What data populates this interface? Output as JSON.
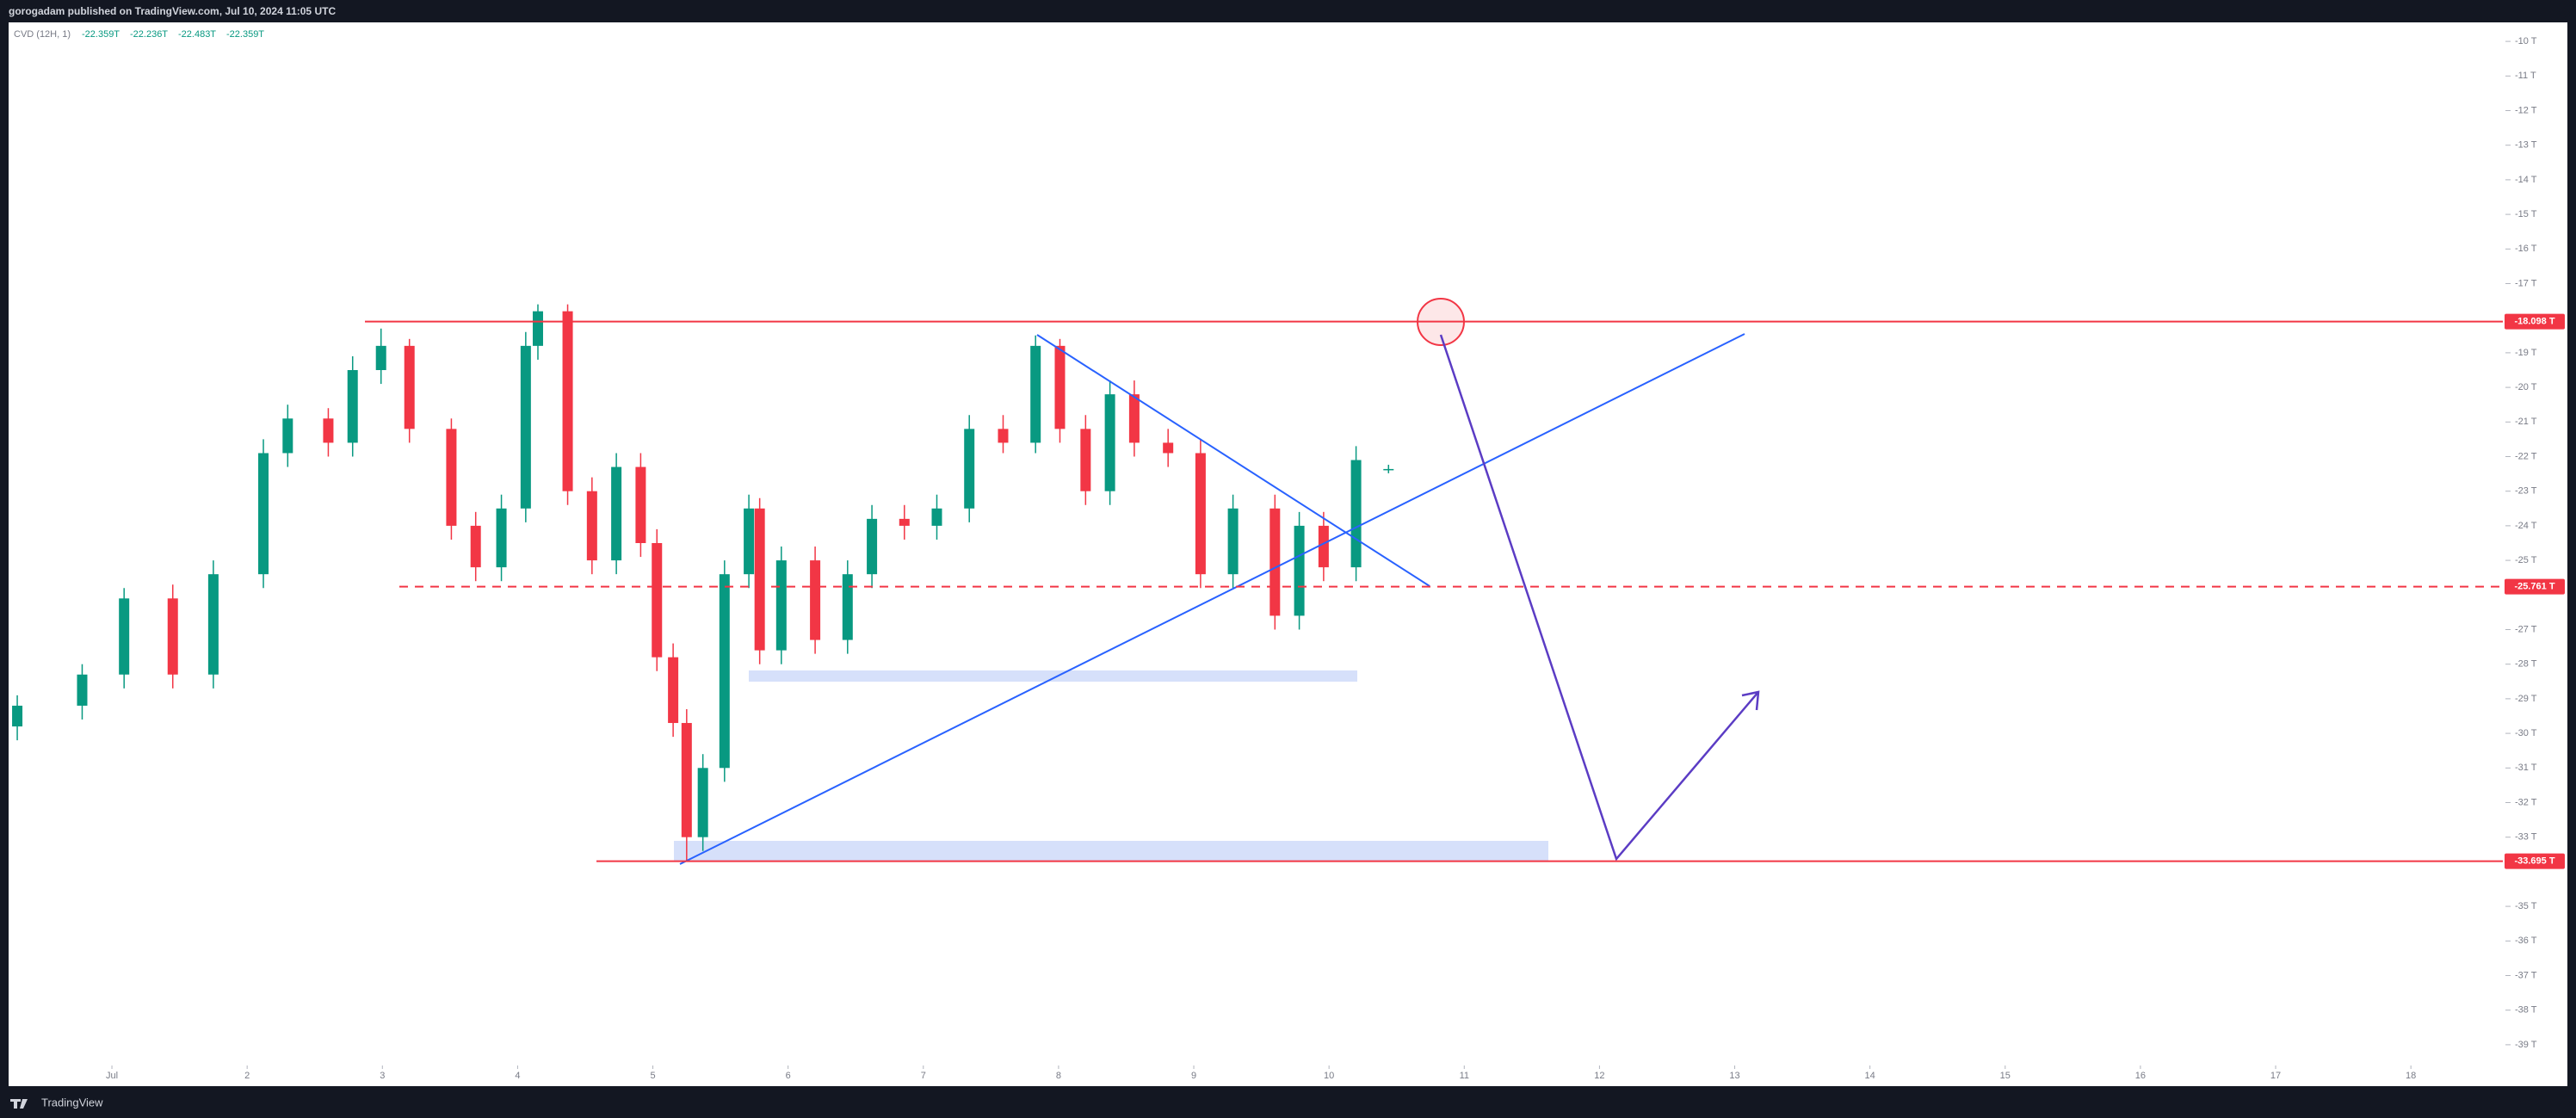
{
  "header": {
    "text": "gorogadam published on TradingView.com, Jul 10, 2024 11:05 UTC"
  },
  "footer": {
    "brand": "TradingView"
  },
  "chart_data": {
    "type": "candlestick",
    "legend_name": "CVD (12H, 1)",
    "legend_values": [
      "-22.359T",
      "-22.236T",
      "-22.483T",
      "-22.359T"
    ],
    "up_color": "#089981",
    "down_color": "#f23645",
    "x": [
      0.3,
      0.78,
      1.09,
      1.45,
      1.75,
      2.12,
      2.3,
      2.6,
      2.78,
      2.99,
      3.2,
      3.51,
      3.69,
      3.88,
      4.06,
      4.15,
      4.37,
      4.55,
      4.73,
      4.91,
      5.03,
      5.15,
      5.25,
      5.37,
      5.53,
      5.71,
      5.79,
      5.95,
      6.2,
      6.44,
      6.62,
      6.86,
      7.1,
      7.34,
      7.59,
      7.83,
      8.01,
      8.2,
      8.38,
      8.56,
      8.81,
      9.05,
      9.29,
      9.6,
      9.78,
      9.96,
      10.2,
      10.44
    ],
    "open": [
      -29.8,
      -29.2,
      -28.3,
      -26.1,
      -28.3,
      -25.4,
      -21.9,
      -20.9,
      -21.6,
      -19.5,
      -18.8,
      -21.2,
      -24,
      -25.2,
      -23.5,
      -18.8,
      -17.8,
      -23,
      -25,
      -22.3,
      -24.5,
      -27.8,
      -29.7,
      -33,
      -31,
      -25.4,
      -23.5,
      -27.6,
      -25,
      -27.3,
      -25.4,
      -23.8,
      -24,
      -23.5,
      -21.2,
      -21.6,
      -18.8,
      -21.2,
      -23,
      -20.2,
      -21.6,
      -21.9,
      -25.4,
      -23.5,
      -26.6,
      -24,
      -25.2,
      -22.359
    ],
    "high": [
      -28.9,
      -28.0,
      -25.8,
      -25.7,
      -25.0,
      -21.5,
      -20.5,
      -20.6,
      -19.1,
      -18.3,
      -18.6,
      -20.9,
      -23.6,
      -23.1,
      -18.4,
      -17.6,
      -17.6,
      -22.6,
      -21.9,
      -21.9,
      -24.1,
      -27.4,
      -29.3,
      -30.6,
      -25.0,
      -23.1,
      -23.2,
      -24.6,
      -24.6,
      -25.0,
      -23.4,
      -23.4,
      -23.1,
      -20.8,
      -20.8,
      -18.5,
      -18.6,
      -20.8,
      -19.8,
      -19.8,
      -21.2,
      -21.5,
      -23.1,
      -23.1,
      -23.6,
      -23.6,
      -21.7,
      -22.236
    ],
    "low": [
      -30.2,
      -29.6,
      -28.7,
      -28.7,
      -28.7,
      -25.8,
      -22.3,
      -22.0,
      -22.0,
      -19.9,
      -21.6,
      -24.4,
      -25.6,
      -25.6,
      -23.9,
      -19.2,
      -23.4,
      -25.4,
      -25.4,
      -24.9,
      -28.2,
      -30.1,
      -33.7,
      -33.4,
      -31.4,
      -25.8,
      -28.0,
      -28.0,
      -27.7,
      -27.7,
      -25.8,
      -24.4,
      -24.4,
      -23.9,
      -21.9,
      -21.9,
      -21.6,
      -23.4,
      -23.4,
      -22.0,
      -22.3,
      -25.8,
      -25.8,
      -27.0,
      -27.0,
      -25.6,
      -25.6,
      -22.483
    ],
    "close": [
      -29.2,
      -28.3,
      -26.1,
      -28.3,
      -25.4,
      -21.9,
      -20.9,
      -21.6,
      -19.5,
      -18.8,
      -21.2,
      -24,
      -25.2,
      -23.5,
      -18.8,
      -17.8,
      -23,
      -25,
      -22.3,
      -24.5,
      -27.8,
      -29.7,
      -33,
      -31,
      -25.4,
      -23.5,
      -27.6,
      -25,
      -27.3,
      -25.4,
      -23.8,
      -24,
      -23.5,
      -21.2,
      -21.6,
      -18.8,
      -21.2,
      -23,
      -20.2,
      -21.6,
      -21.9,
      -25.4,
      -23.5,
      -26.6,
      -24,
      -25.2,
      -22.1,
      -22.359
    ],
    "xlim": [
      0.236,
      18.68
    ],
    "xticks": [
      {
        "value": 1,
        "label": "Jul"
      },
      2,
      3,
      4,
      5,
      6,
      7,
      8,
      9,
      10,
      11,
      12,
      13,
      14,
      15,
      16,
      17,
      18
    ],
    "ylim": [
      -39.55,
      -9.5
    ],
    "yticks": [
      {
        "value": -10,
        "label": "-10 T"
      },
      {
        "value": -11,
        "label": "-11 T"
      },
      {
        "value": -12,
        "label": "-12 T"
      },
      {
        "value": -13,
        "label": "-13 T"
      },
      {
        "value": -14,
        "label": "-14 T"
      },
      {
        "value": -15,
        "label": "-15 T"
      },
      {
        "value": -16,
        "label": "-16 T"
      },
      {
        "value": -17,
        "label": "-17 T"
      },
      {
        "value": -19,
        "label": "-19 T"
      },
      {
        "value": -20,
        "label": "-20 T"
      },
      {
        "value": -21,
        "label": "-21 T"
      },
      {
        "value": -22,
        "label": "-22 T"
      },
      {
        "value": -23,
        "label": "-23 T"
      },
      {
        "value": -24,
        "label": "-24 T"
      },
      {
        "value": -25,
        "label": "-25 T"
      },
      {
        "value": -27,
        "label": "-27 T"
      },
      {
        "value": -28,
        "label": "-28 T"
      },
      {
        "value": -29,
        "label": "-29 T"
      },
      {
        "value": -30,
        "label": "-30 T"
      },
      {
        "value": -31,
        "label": "-31 T"
      },
      {
        "value": -32,
        "label": "-32 T"
      },
      {
        "value": -33,
        "label": "-33 T"
      },
      {
        "value": -35,
        "label": "-35 T"
      },
      {
        "value": -36,
        "label": "-36 T"
      },
      {
        "value": -37,
        "label": "-37 T"
      },
      {
        "value": -38,
        "label": "-38 T"
      },
      {
        "value": -39,
        "label": "-39 T"
      }
    ],
    "grid": false,
    "price_lines": [
      {
        "value": -18.098,
        "label": "-18.098 T",
        "color": "#f23645",
        "style": "solid"
      },
      {
        "value": -25.761,
        "label": "-25.761 T",
        "color": "#f23645",
        "style": "dashed"
      },
      {
        "value": -33.695,
        "label": "-33.695 T",
        "color": "#f23645",
        "style": "solid"
      }
    ]
  }
}
